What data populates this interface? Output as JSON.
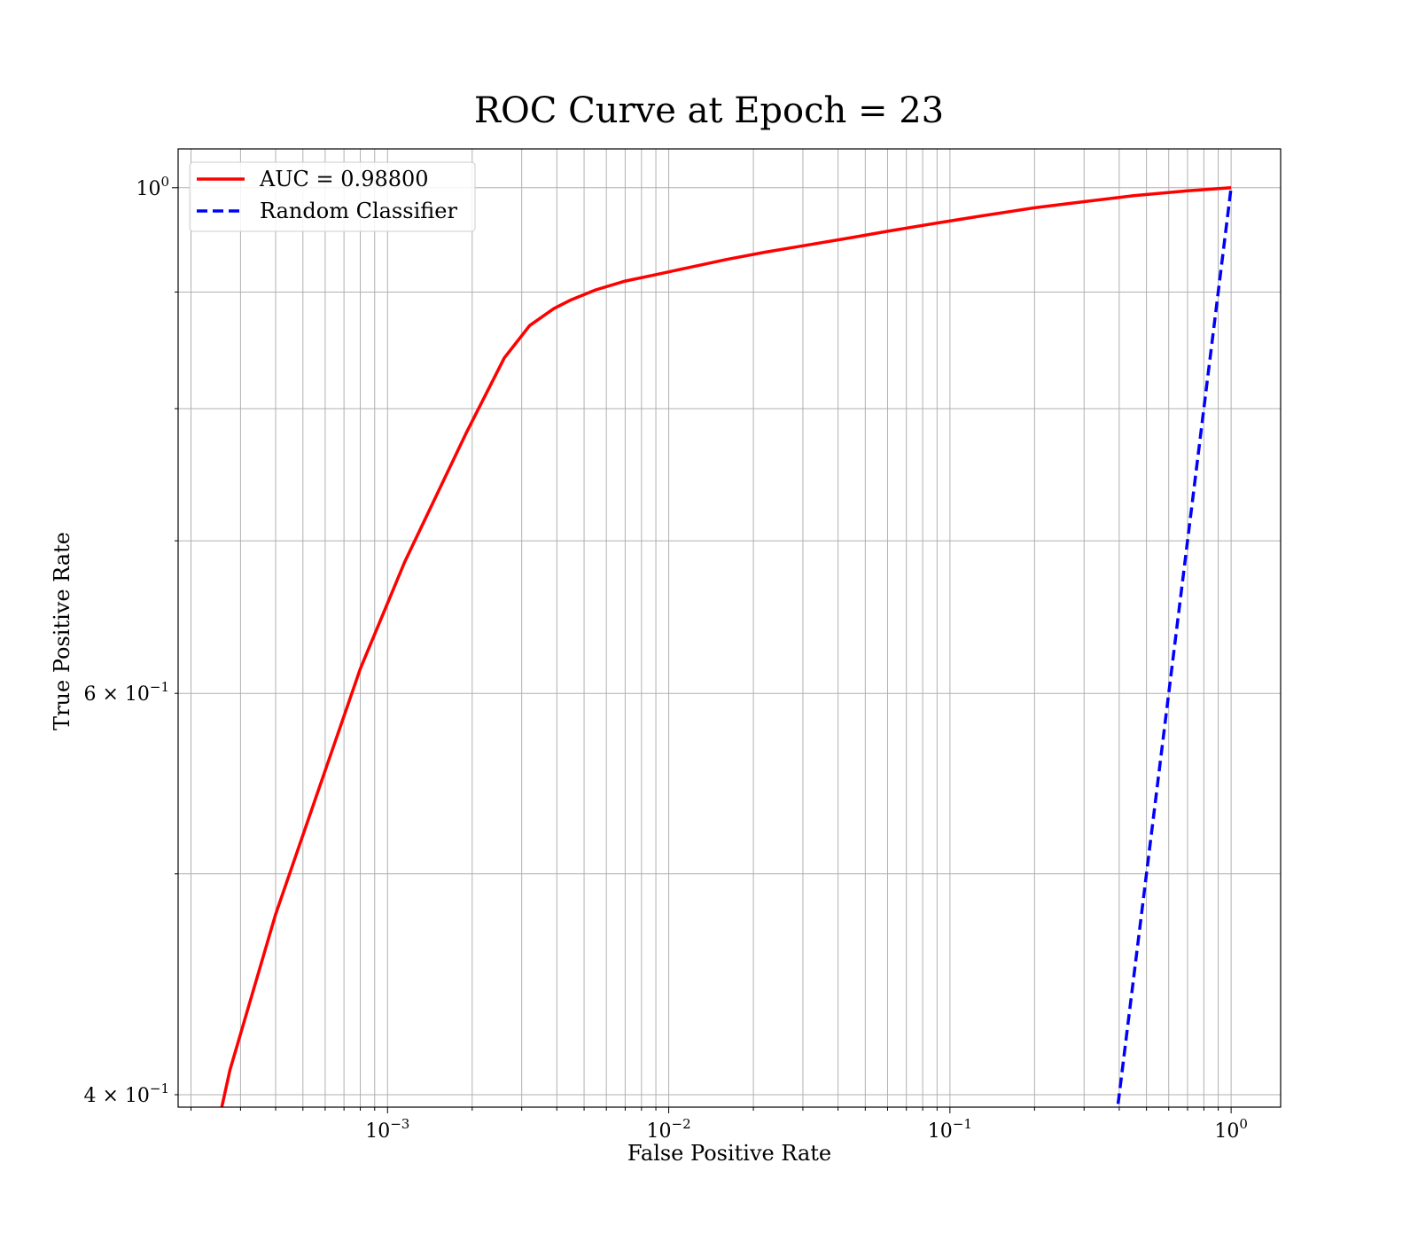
{
  "chart_data": {
    "type": "line",
    "title": "ROC Curve at Epoch = 23",
    "xlabel": "False Positive Rate",
    "ylabel": "True Positive Rate",
    "xscale": "log",
    "yscale": "log",
    "xlim": [
      0.00018,
      1.5
    ],
    "ylim": [
      0.395,
      1.04
    ],
    "grid": true,
    "legend_position": "top-left",
    "x_ticks": [
      {
        "value": 0.001,
        "base": "10",
        "exp": "−3"
      },
      {
        "value": 0.01,
        "base": "10",
        "exp": "−2"
      },
      {
        "value": 0.1,
        "base": "10",
        "exp": "−1"
      },
      {
        "value": 1,
        "base": "10",
        "exp": "0"
      }
    ],
    "y_ticks": [
      {
        "value": 1.0,
        "mant": "",
        "base": "10",
        "exp": "0"
      },
      {
        "value": 0.6,
        "mant": "6 × ",
        "base": "10",
        "exp": "−1"
      },
      {
        "value": 0.4,
        "mant": "4 × ",
        "base": "10",
        "exp": "−1"
      }
    ],
    "series": [
      {
        "name": "AUC = 0.98800",
        "color": "#ff0000",
        "style": "solid",
        "x": [
          0.000255,
          0.000275,
          0.0004,
          0.0006,
          0.0008,
          0.00115,
          0.0019,
          0.0026,
          0.0032,
          0.0039,
          0.0045,
          0.0055,
          0.007,
          0.009,
          0.012,
          0.016,
          0.022,
          0.03,
          0.045,
          0.06,
          0.09,
          0.13,
          0.2,
          0.3,
          0.45,
          0.7,
          1.0
        ],
        "y": [
          0.393,
          0.41,
          0.48,
          0.555,
          0.615,
          0.685,
          0.78,
          0.842,
          0.87,
          0.885,
          0.893,
          0.902,
          0.91,
          0.916,
          0.923,
          0.93,
          0.937,
          0.943,
          0.951,
          0.957,
          0.965,
          0.972,
          0.98,
          0.986,
          0.992,
          0.997,
          1.0
        ]
      },
      {
        "name": "Random Classifier",
        "color": "#0000ff",
        "style": "dashed",
        "x": [
          0.39,
          1.0
        ],
        "y": [
          0.39,
          1.0
        ]
      }
    ]
  }
}
